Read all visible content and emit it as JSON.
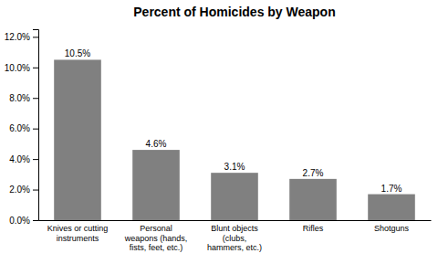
{
  "chart_data": {
    "type": "bar",
    "title": "Percent of Homicides by Weapon",
    "categories": [
      "Knives or cutting\ninstruments",
      "Personal\nweapons (hands,\nfists, feet, etc.)",
      "Blunt objects\n(clubs,\nhammers, etc.)",
      "Rifles",
      "Shotguns"
    ],
    "values": [
      10.5,
      4.6,
      3.1,
      2.7,
      1.7
    ],
    "value_labels": [
      "10.5%",
      "4.6%",
      "3.1%",
      "2.7%",
      "1.7%"
    ],
    "data_labels": true,
    "color": "#808080",
    "ylim": [
      0,
      12.5
    ],
    "yticks": [
      {
        "value": 0,
        "label": "0.0%"
      },
      {
        "value": 2.0,
        "label": "2.0%"
      },
      {
        "value": 4.0,
        "label": "4.0%"
      },
      {
        "value": 6.0,
        "label": "6.0%"
      },
      {
        "value": 8.0,
        "label": "8.0%"
      },
      {
        "value": 10.0,
        "label": "10.0%"
      },
      {
        "value": 12.0,
        "label": "12.0%"
      }
    ],
    "grid": false
  }
}
